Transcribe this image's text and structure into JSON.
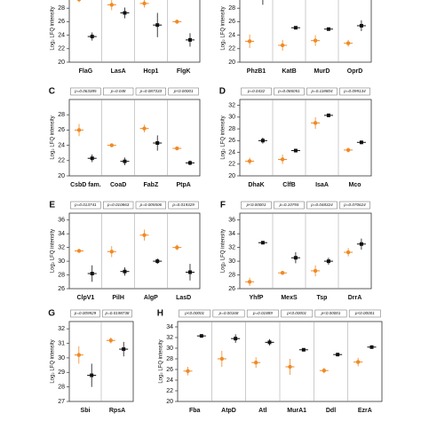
{
  "chart_data": [
    {
      "type": "errorbar",
      "y_label": "Log₂ LFQ intensity",
      "categories": [
        "FlaG",
        "LasA",
        "Hcp1",
        "FlgK"
      ],
      "series": [
        {
          "color": "#f08a24",
          "values": [
            29.3,
            28.5,
            28.7,
            26.0
          ],
          "errors": [
            0.4,
            0.8,
            0.6,
            0.3
          ]
        },
        {
          "color": "#111111",
          "values": [
            23.8,
            27.3,
            25.5,
            23.3
          ],
          "errors": [
            0.6,
            0.8,
            1.8,
            1.0
          ]
        }
      ],
      "ylim": [
        20,
        30
      ],
      "yticks": [
        20,
        22,
        24,
        26,
        28
      ]
    },
    {
      "type": "errorbar",
      "y_label": "Log₂ LFQ intensity",
      "categories": [
        "PhzB1",
        "KatB",
        "MurD",
        "OprD"
      ],
      "series": [
        {
          "color": "#f08a24",
          "values": [
            23.1,
            22.5,
            23.2,
            22.8
          ],
          "errors": [
            1.0,
            0.8,
            0.8,
            0.5
          ]
        },
        {
          "color": "#111111",
          "values": [
            29.5,
            25.1,
            24.9,
            25.4
          ],
          "errors": [
            1.0,
            0.2,
            0.2,
            0.8
          ]
        }
      ],
      "ylim": [
        20,
        30
      ],
      "yticks": [
        20,
        22,
        24,
        26,
        28
      ]
    },
    {
      "type": "errorbar",
      "label": "C",
      "y_label": "Log₂ LFQ intensity",
      "categories": [
        "CsbD fam.",
        "CoaD",
        "FabZ",
        "PtpA"
      ],
      "p_values": [
        "p=0.063385",
        "p=0.048",
        "p=0.087333",
        "p<0.00001"
      ],
      "series": [
        {
          "color": "#f08a24",
          "values": [
            26.0,
            24.0,
            26.2,
            23.6
          ],
          "errors": [
            0.8,
            0.1,
            0.5,
            0.2
          ]
        },
        {
          "color": "#111111",
          "values": [
            22.3,
            21.9,
            24.3,
            21.7
          ],
          "errors": [
            0.5,
            0.5,
            1.0,
            0.3
          ]
        }
      ],
      "ylim": [
        20,
        30
      ],
      "yticks": [
        20,
        22,
        24,
        26,
        28
      ]
    },
    {
      "type": "errorbar",
      "label": "D",
      "y_label": "Log₂ LFQ intensity",
      "categories": [
        "DhaK",
        "ClfB",
        "IsaA",
        "Mco"
      ],
      "p_values": [
        "p=0.0432",
        "p=0.086051",
        "p=0.118804",
        "p=0.099134"
      ],
      "series": [
        {
          "color": "#f08a24",
          "values": [
            22.5,
            22.8,
            29.0,
            24.4
          ],
          "errors": [
            0.6,
            0.8,
            1.0,
            0.4
          ]
        },
        {
          "color": "#111111",
          "values": [
            26.0,
            24.3,
            30.3,
            25.7
          ],
          "errors": [
            0.5,
            0.3,
            0.3,
            0.3
          ]
        }
      ],
      "ylim": [
        20,
        33
      ],
      "yticks": [
        20,
        22,
        24,
        26,
        28,
        30,
        32
      ]
    },
    {
      "type": "errorbar",
      "label": "E",
      "y_label": "Log₂ LFQ intensity",
      "categories": [
        "ClpV1",
        "PilH",
        "AlgP",
        "LasD"
      ],
      "p_values": [
        "p=0.013741",
        "p=0.010863",
        "p=0.005506",
        "p=0.019329"
      ],
      "series": [
        {
          "color": "#f08a24",
          "values": [
            31.5,
            31.4,
            33.8,
            32.0
          ],
          "errors": [
            0.2,
            0.8,
            0.8,
            0.4
          ]
        },
        {
          "color": "#111111",
          "values": [
            28.2,
            28.5,
            30.0,
            28.4
          ],
          "errors": [
            1.2,
            0.6,
            0.4,
            1.2
          ]
        }
      ],
      "ylim": [
        26,
        37
      ],
      "yticks": [
        26,
        28,
        30,
        32,
        34,
        36
      ]
    },
    {
      "type": "errorbar",
      "label": "F",
      "y_label": "Log₂ LFQ intensity",
      "categories": [
        "YhfP",
        "MexS",
        "Tsp",
        "DrrA"
      ],
      "p_values": [
        "p<0.00001",
        "p=0.10755",
        "p=0.048324",
        "p=0.070624"
      ],
      "series": [
        {
          "color": "#f08a24",
          "values": [
            27.0,
            28.3,
            28.6,
            31.3
          ],
          "errors": [
            0.6,
            0.3,
            0.8,
            0.6
          ]
        },
        {
          "color": "#111111",
          "values": [
            32.7,
            30.5,
            30.0,
            32.5
          ],
          "errors": [
            0.2,
            0.8,
            0.5,
            0.8
          ]
        }
      ],
      "ylim": [
        26,
        37
      ],
      "yticks": [
        26,
        28,
        30,
        32,
        34,
        36
      ]
    },
    {
      "type": "errorbar",
      "label": "G",
      "y_label": "Log₂ LFQ intensity",
      "categories": [
        "Sbi",
        "RpsA"
      ],
      "p_values": [
        "p=0.009929",
        "p=0.0198738"
      ],
      "series": [
        {
          "color": "#f08a24",
          "values": [
            30.2,
            31.2
          ],
          "errors": [
            0.6,
            0.2
          ]
        },
        {
          "color": "#111111",
          "values": [
            28.8,
            30.6
          ],
          "errors": [
            0.8,
            0.5
          ]
        }
      ],
      "ylim": [
        27,
        32.5
      ],
      "yticks": [
        27,
        28,
        29,
        30,
        31,
        32
      ]
    },
    {
      "type": "errorbar",
      "label": "H",
      "y_label": "Log₂ LFQ intensity",
      "categories": [
        "Fba",
        "AtpD",
        "Atl",
        "MurA1",
        "Ddl",
        "EzrA"
      ],
      "p_values": [
        "p<0.00001",
        "p=0.00168",
        "p=0.01889",
        "p<0.00001",
        "p<0.00001",
        "p<0.00001"
      ],
      "series": [
        {
          "color": "#f08a24",
          "values": [
            25.7,
            28.0,
            27.3,
            26.5,
            25.8,
            27.4
          ],
          "errors": [
            0.8,
            1.5,
            1.0,
            1.5,
            0.5,
            0.8
          ]
        },
        {
          "color": "#111111",
          "values": [
            32.3,
            31.8,
            31.1,
            29.7,
            28.8,
            30.2
          ],
          "errors": [
            0.2,
            0.8,
            0.6,
            0.2,
            0.2,
            0.2
          ]
        }
      ],
      "ylim": [
        20,
        35
      ],
      "yticks": [
        20,
        22,
        24,
        26,
        28,
        30,
        32,
        34
      ]
    }
  ]
}
